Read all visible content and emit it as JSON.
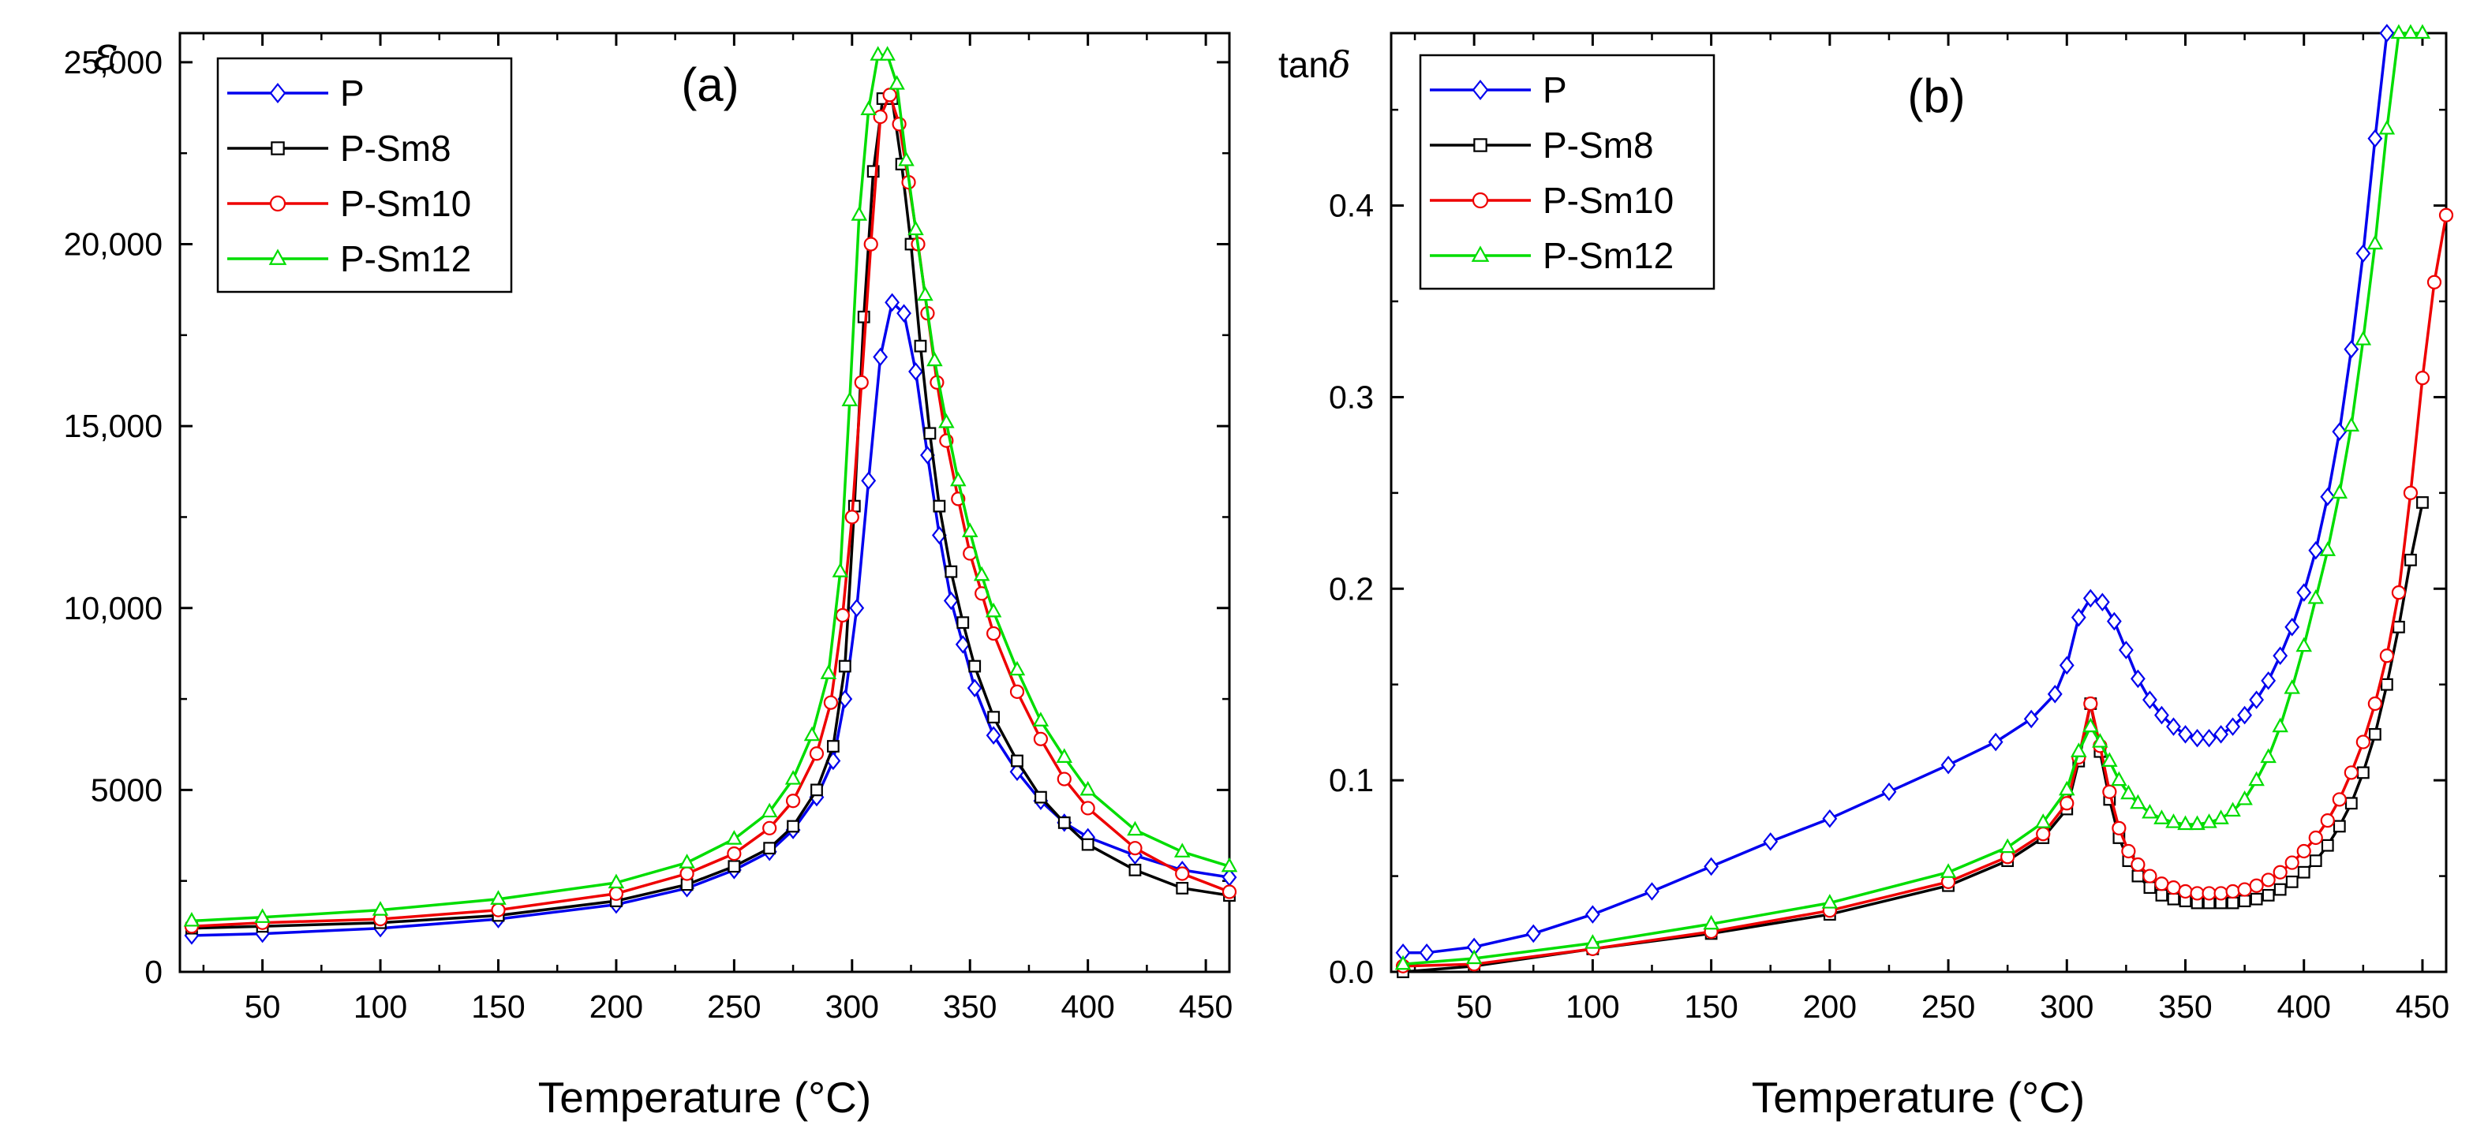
{
  "chart_data": [
    {
      "type": "line",
      "panel_label": "(a)",
      "xlabel": "Temperature (°C)",
      "ylabel": "ε",
      "xlim": [
        15,
        460
      ],
      "ylim": [
        0,
        25800
      ],
      "xticks": [
        50,
        100,
        150,
        200,
        250,
        300,
        350,
        400,
        450
      ],
      "xtick_labels": [
        "50",
        "100",
        "150",
        "200",
        "250",
        "300",
        "350",
        "400",
        "450"
      ],
      "yticks": [
        0,
        5000,
        10000,
        15000,
        20000,
        25000
      ],
      "ytick_labels": [
        "0",
        "5000",
        "10,000",
        "15,000",
        "20,000",
        "25,000"
      ],
      "legend_position": "top-left",
      "series": [
        {
          "name": "P",
          "color": "#0000ee",
          "marker": "diamond",
          "x": [
            20,
            50,
            100,
            150,
            200,
            230,
            250,
            265,
            275,
            285,
            292,
            297,
            302,
            307,
            312,
            317,
            322,
            327,
            332,
            337,
            342,
            347,
            352,
            360,
            370,
            380,
            390,
            400,
            420,
            440,
            460
          ],
          "y": [
            1000,
            1050,
            1200,
            1450,
            1850,
            2300,
            2800,
            3300,
            3900,
            4800,
            5800,
            7500,
            10000,
            13500,
            16900,
            18400,
            18100,
            16500,
            14200,
            12000,
            10200,
            9000,
            7800,
            6500,
            5500,
            4700,
            4100,
            3700,
            3200,
            2800,
            2600
          ]
        },
        {
          "name": "P-Sm8",
          "color": "#000000",
          "marker": "square",
          "x": [
            20,
            50,
            100,
            150,
            200,
            230,
            250,
            265,
            275,
            285,
            292,
            297,
            301,
            305,
            309,
            313,
            317,
            321,
            325,
            329,
            333,
            337,
            342,
            347,
            352,
            360,
            370,
            380,
            390,
            400,
            420,
            440,
            460
          ],
          "y": [
            1200,
            1250,
            1350,
            1550,
            1950,
            2400,
            2900,
            3400,
            4000,
            5000,
            6200,
            8400,
            12800,
            18000,
            22000,
            24000,
            24000,
            22200,
            20000,
            17200,
            14800,
            12800,
            11000,
            9600,
            8400,
            7000,
            5800,
            4800,
            4100,
            3500,
            2800,
            2300,
            2100
          ]
        },
        {
          "name": "P-Sm10",
          "color": "#ee0000",
          "marker": "circle",
          "x": [
            20,
            50,
            100,
            150,
            200,
            230,
            250,
            265,
            275,
            285,
            291,
            296,
            300,
            304,
            308,
            312,
            316,
            320,
            324,
            328,
            332,
            336,
            340,
            345,
            350,
            355,
            360,
            370,
            380,
            390,
            400,
            420,
            440,
            460
          ],
          "y": [
            1250,
            1350,
            1450,
            1700,
            2150,
            2700,
            3250,
            3950,
            4700,
            6000,
            7400,
            9800,
            12500,
            16200,
            20000,
            23500,
            24100,
            23300,
            21700,
            20000,
            18100,
            16200,
            14600,
            13000,
            11500,
            10400,
            9300,
            7700,
            6400,
            5300,
            4500,
            3400,
            2700,
            2200
          ]
        },
        {
          "name": "P-Sm12",
          "color": "#00dd00",
          "marker": "triangle",
          "x": [
            20,
            50,
            100,
            150,
            200,
            230,
            250,
            265,
            275,
            283,
            290,
            295,
            299,
            303,
            307,
            311,
            315,
            319,
            323,
            327,
            331,
            335,
            340,
            345,
            350,
            355,
            360,
            370,
            380,
            390,
            400,
            420,
            440,
            460
          ],
          "y": [
            1400,
            1500,
            1700,
            2000,
            2450,
            3000,
            3650,
            4400,
            5300,
            6500,
            8200,
            11000,
            15700,
            20800,
            23700,
            25200,
            25200,
            24400,
            22300,
            20400,
            18600,
            16800,
            15100,
            13500,
            12100,
            10900,
            9900,
            8300,
            6900,
            5900,
            5000,
            3900,
            3300,
            2900
          ]
        }
      ]
    },
    {
      "type": "line",
      "panel_label": "(b)",
      "xlabel": "Temperature (°C)",
      "ylabel_prefix": "tan",
      "ylabel_symbol": "δ",
      "xlim": [
        15,
        460
      ],
      "ylim": [
        0,
        0.49
      ],
      "xticks": [
        50,
        100,
        150,
        200,
        250,
        300,
        350,
        400,
        450
      ],
      "xtick_labels": [
        "50",
        "100",
        "150",
        "200",
        "250",
        "300",
        "350",
        "400",
        "450"
      ],
      "yticks": [
        0,
        0.1,
        0.2,
        0.3,
        0.4
      ],
      "ytick_labels": [
        "0.0",
        "0.1",
        "0.2",
        "0.3",
        "0.4"
      ],
      "legend_position": "top-left",
      "series": [
        {
          "name": "P",
          "color": "#0000ee",
          "marker": "diamond",
          "x": [
            20,
            30,
            50,
            75,
            100,
            125,
            150,
            175,
            200,
            225,
            250,
            270,
            285,
            295,
            300,
            305,
            310,
            315,
            320,
            325,
            330,
            335,
            340,
            345,
            350,
            355,
            360,
            365,
            370,
            375,
            380,
            385,
            390,
            395,
            400,
            405,
            410,
            415,
            420,
            425,
            430,
            435
          ],
          "y": [
            0.01,
            0.01,
            0.013,
            0.02,
            0.03,
            0.042,
            0.055,
            0.068,
            0.08,
            0.094,
            0.108,
            0.12,
            0.132,
            0.145,
            0.16,
            0.185,
            0.195,
            0.193,
            0.183,
            0.168,
            0.153,
            0.142,
            0.134,
            0.128,
            0.124,
            0.122,
            0.122,
            0.124,
            0.128,
            0.134,
            0.142,
            0.152,
            0.165,
            0.18,
            0.198,
            0.22,
            0.248,
            0.282,
            0.325,
            0.375,
            0.435,
            0.49
          ]
        },
        {
          "name": "P-Sm8",
          "color": "#000000",
          "marker": "square",
          "x": [
            20,
            50,
            100,
            150,
            200,
            250,
            275,
            290,
            300,
            305,
            310,
            314,
            318,
            322,
            326,
            330,
            335,
            340,
            345,
            350,
            355,
            360,
            365,
            370,
            375,
            380,
            385,
            390,
            395,
            400,
            405,
            410,
            415,
            420,
            425,
            430,
            435,
            440,
            445,
            450
          ],
          "y": [
            0.0,
            0.003,
            0.012,
            0.02,
            0.03,
            0.045,
            0.058,
            0.07,
            0.085,
            0.11,
            0.14,
            0.115,
            0.09,
            0.07,
            0.058,
            0.05,
            0.044,
            0.04,
            0.038,
            0.037,
            0.036,
            0.036,
            0.036,
            0.036,
            0.037,
            0.038,
            0.04,
            0.043,
            0.047,
            0.052,
            0.058,
            0.066,
            0.076,
            0.088,
            0.104,
            0.124,
            0.15,
            0.18,
            0.215,
            0.245
          ]
        },
        {
          "name": "P-Sm10",
          "color": "#ee0000",
          "marker": "circle",
          "x": [
            20,
            50,
            100,
            150,
            200,
            250,
            275,
            290,
            300,
            305,
            310,
            314,
            318,
            322,
            326,
            330,
            335,
            340,
            345,
            350,
            355,
            360,
            365,
            370,
            375,
            380,
            385,
            390,
            395,
            400,
            405,
            410,
            415,
            420,
            425,
            430,
            435,
            440,
            445,
            450,
            455,
            460
          ],
          "y": [
            0.003,
            0.004,
            0.012,
            0.021,
            0.032,
            0.047,
            0.06,
            0.072,
            0.088,
            0.112,
            0.14,
            0.118,
            0.094,
            0.075,
            0.063,
            0.056,
            0.05,
            0.046,
            0.044,
            0.042,
            0.041,
            0.041,
            0.041,
            0.042,
            0.043,
            0.045,
            0.048,
            0.052,
            0.057,
            0.063,
            0.07,
            0.079,
            0.09,
            0.104,
            0.12,
            0.14,
            0.165,
            0.198,
            0.25,
            0.31,
            0.36,
            0.395
          ]
        },
        {
          "name": "P-Sm12",
          "color": "#00dd00",
          "marker": "triangle",
          "x": [
            20,
            50,
            100,
            150,
            200,
            250,
            275,
            290,
            300,
            305,
            310,
            314,
            318,
            322,
            326,
            330,
            335,
            340,
            345,
            350,
            355,
            360,
            365,
            370,
            375,
            380,
            385,
            390,
            395,
            400,
            405,
            410,
            415,
            420,
            425,
            430,
            435,
            440,
            445,
            450
          ],
          "y": [
            0.004,
            0.007,
            0.015,
            0.025,
            0.036,
            0.052,
            0.065,
            0.078,
            0.095,
            0.115,
            0.128,
            0.12,
            0.11,
            0.1,
            0.093,
            0.088,
            0.083,
            0.08,
            0.078,
            0.077,
            0.077,
            0.078,
            0.08,
            0.084,
            0.09,
            0.1,
            0.112,
            0.128,
            0.148,
            0.17,
            0.195,
            0.22,
            0.25,
            0.285,
            0.33,
            0.38,
            0.44,
            0.49,
            0.49,
            0.49
          ]
        }
      ]
    }
  ]
}
